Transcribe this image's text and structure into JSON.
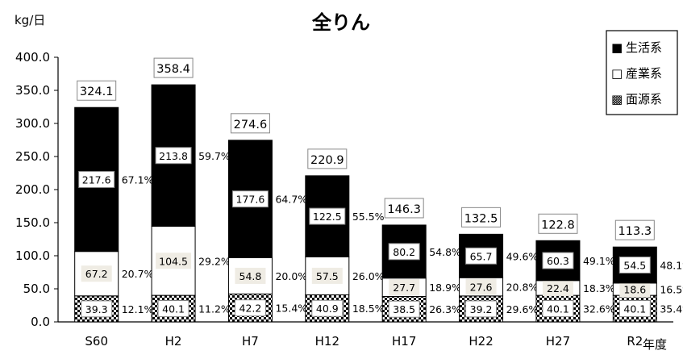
{
  "chart_data": {
    "type": "bar",
    "stacked": true,
    "title": "全りん",
    "ylabel": "kg/日",
    "xlabel": "年度",
    "ylim": [
      0,
      400
    ],
    "yticks": [
      "0.0",
      "50.0",
      "100.0",
      "150.0",
      "200.0",
      "250.0",
      "300.0",
      "350.0",
      "400.0"
    ],
    "categories": [
      "S60",
      "H2",
      "H7",
      "H12",
      "H17",
      "H22",
      "H27",
      "R2"
    ],
    "totals": [
      "324.1",
      "358.4",
      "274.6",
      "220.9",
      "146.3",
      "132.5",
      "122.8",
      "113.3"
    ],
    "series": [
      {
        "name": "面源系",
        "pattern": "checker",
        "color": "#000000",
        "values": [
          39.3,
          40.1,
          42.2,
          40.9,
          38.5,
          39.2,
          40.1,
          40.1
        ],
        "labels": [
          "39.3",
          "40.1",
          "42.2",
          "40.9",
          "38.5",
          "39.2",
          "40.1",
          "40.1"
        ],
        "percents": [
          "12.1%",
          "11.2%",
          "15.4%",
          "18.5%",
          "26.3%",
          "29.6%",
          "32.6%",
          "35.4%"
        ]
      },
      {
        "name": "産業系",
        "pattern": "white",
        "color": "#ffffff",
        "values": [
          67.2,
          104.5,
          54.8,
          57.5,
          27.7,
          27.6,
          22.4,
          18.6
        ],
        "labels": [
          "67.2",
          "104.5",
          "54.8",
          "57.5",
          "27.7",
          "27.6",
          "22.4",
          "18.6"
        ],
        "percents": [
          "20.7%",
          "29.2%",
          "20.0%",
          "26.0%",
          "18.9%",
          "20.8%",
          "18.3%",
          "16.5%"
        ]
      },
      {
        "name": "生活系",
        "pattern": "black",
        "color": "#000000",
        "values": [
          217.6,
          213.8,
          177.6,
          122.5,
          80.2,
          65.7,
          60.3,
          54.5
        ],
        "labels": [
          "217.6",
          "213.8",
          "177.6",
          "122.5",
          "80.2",
          "65.7",
          "60.3",
          "54.5"
        ],
        "percents": [
          "67.1%",
          "59.7%",
          "64.7%",
          "55.5%",
          "54.8%",
          "49.6%",
          "49.1%",
          "48.1%"
        ]
      }
    ],
    "legend": {
      "position": "top-right",
      "items": [
        {
          "symbol": "■",
          "label": "生活系"
        },
        {
          "symbol": "□",
          "label": "産業系"
        },
        {
          "symbol": "▩",
          "label": "面源系"
        }
      ]
    },
    "grid": false
  }
}
